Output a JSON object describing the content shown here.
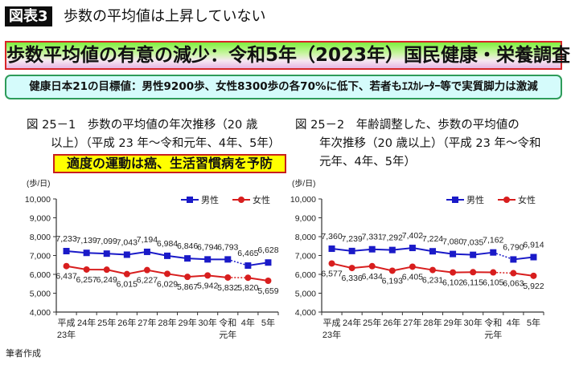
{
  "header": {
    "badge": "図表3",
    "title": "歩数の平均値は上昇していない"
  },
  "headline_band": "歩数平均値の有意の減少：令和5年（2023年）国民健康・栄養調査",
  "sub_band": "健康日本21の目標値：男性9200歩、女性8300歩の各70%に低下、若者もｴｽｶﾚｰﾀｰ等で実質脚力は激減",
  "caption_left": {
    "line1": "図 25－1　歩数の平均値の年次推移（20 歳",
    "line2": "以上）（平成 23 年～令和元年、4年、5年）"
  },
  "caption_right": {
    "line1": "図 25－2　年齢調整した、歩数の平均値の",
    "line2": "年次推移（20 歳以上）（平成 23 年～令和",
    "line3": "元年、4年、5年）"
  },
  "highlight_box": "適度の運動は癌、生活習慣病を予防",
  "footnote": "筆者作成",
  "colors": {
    "male": "#1a1ac8",
    "female": "#d81e1e",
    "axis": "#333333"
  },
  "chart_data": [
    {
      "type": "line",
      "title": "図 25－1　歩数の平均値の年次推移（20 歳以上）（平成 23 年～令和元年、4年、5年）",
      "ylabel": "(歩/日)",
      "xlabel": "",
      "ylim": [
        4000,
        10000
      ],
      "yticks": [
        4000,
        5000,
        6000,
        7000,
        8000,
        9000,
        10000
      ],
      "ytick_labels": [
        "4,000",
        "5,000",
        "6,000",
        "7,000",
        "8,000",
        "9,000",
        "10,000"
      ],
      "categories": [
        "平成\n23年",
        "24年",
        "25年",
        "26年",
        "27年",
        "28年",
        "29年",
        "30年",
        "令和\n元年",
        "4年",
        "5年"
      ],
      "legend_position": "top-right",
      "gap_note": "dotted segment between 令和元年 and 4年",
      "series": [
        {
          "name": "男性",
          "marker": "square",
          "values": [
            7233,
            7139,
            7099,
            7043,
            7194,
            6984,
            6846,
            6794,
            6793,
            6465,
            6628
          ],
          "labels": [
            "7,233",
            "7,139",
            "7,099",
            "7,043",
            "7,194",
            "6,984",
            "6,846",
            "6,794",
            "6,793",
            "6,465",
            "6,628"
          ]
        },
        {
          "name": "女性",
          "marker": "circle",
          "values": [
            6437,
            6257,
            6249,
            6015,
            6227,
            6029,
            5867,
            5942,
            5832,
            5820,
            5659
          ],
          "labels": [
            "6,437",
            "6,257",
            "6,249",
            "6,015",
            "6,227",
            "6,029",
            "5,867",
            "5,942",
            "5,832",
            "5,820",
            "5,659"
          ]
        }
      ]
    },
    {
      "type": "line",
      "title": "図 25－2　年齢調整した、歩数の平均値の年次推移（20 歳以上）（平成 23 年～令和元年、4年、5年）",
      "ylabel": "(歩/日)",
      "xlabel": "",
      "ylim": [
        4000,
        10000
      ],
      "yticks": [
        4000,
        5000,
        6000,
        7000,
        8000,
        9000,
        10000
      ],
      "ytick_labels": [
        "4,000",
        "5,000",
        "6,000",
        "7,000",
        "8,000",
        "9,000",
        "10,000"
      ],
      "categories": [
        "平成\n23年",
        "24年",
        "25年",
        "26年",
        "27年",
        "28年",
        "29年",
        "30年",
        "令和\n元年",
        "4年",
        "5年"
      ],
      "legend_position": "top-right",
      "gap_note": "dotted segment between 令和元年 and 4年",
      "series": [
        {
          "name": "男性",
          "marker": "square",
          "values": [
            7360,
            7239,
            7331,
            7292,
            7402,
            7224,
            7080,
            7035,
            7162,
            6790,
            6914
          ],
          "labels": [
            "7,360",
            "7,239",
            "7,331",
            "7,292",
            "7,402",
            "7,224",
            "7,080",
            "7,035",
            "7,162",
            "6,790",
            "6,914"
          ]
        },
        {
          "name": "女性",
          "marker": "circle",
          "values": [
            6577,
            6336,
            6434,
            6193,
            6405,
            6231,
            6102,
            6115,
            6105,
            6063,
            5922
          ],
          "labels": [
            "6,577",
            "6,336",
            "6,434",
            "6,193",
            "6,405",
            "6,231",
            "6,102",
            "6,115",
            "6,105",
            "6,063",
            "5,922"
          ]
        }
      ]
    }
  ]
}
